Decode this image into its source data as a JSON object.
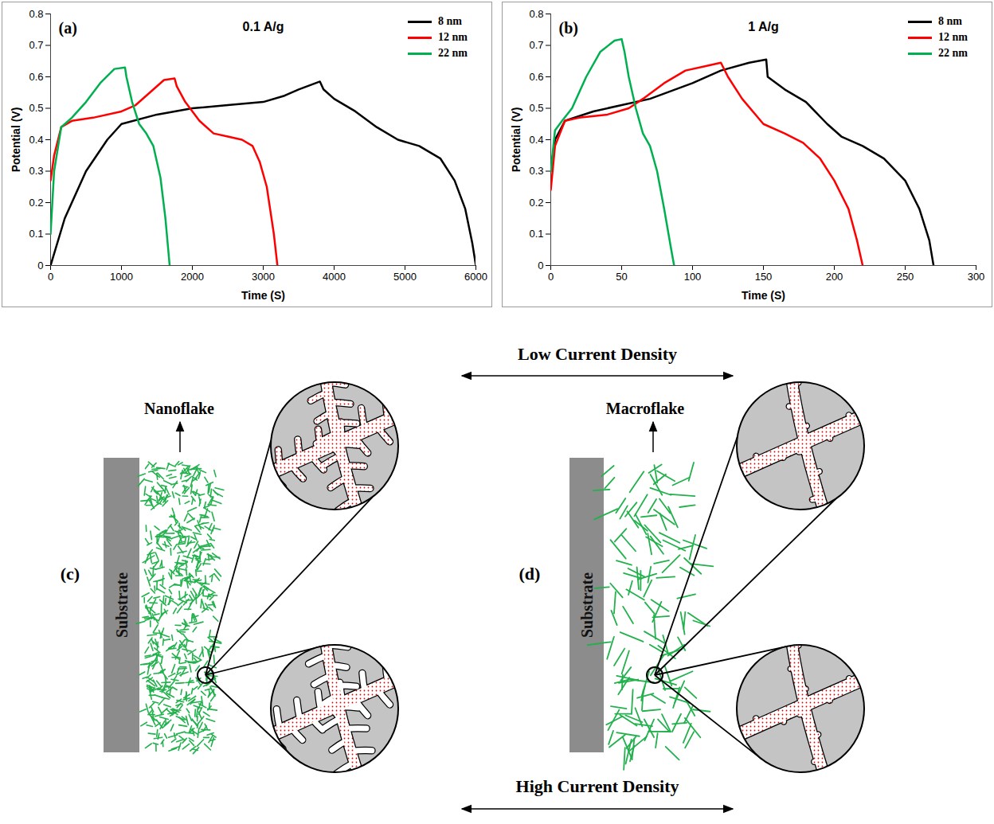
{
  "chart_data": [
    {
      "type": "line",
      "title": "0.1 A/g",
      "annotations": [
        "(a)"
      ],
      "x_label": "Time (S)",
      "y_label": "Potential (V)",
      "xlim": [
        0,
        6000
      ],
      "xticks": [
        0,
        1000,
        2000,
        3000,
        4000,
        5000,
        6000
      ],
      "ylim": [
        0,
        0.8
      ],
      "yticks": [
        0,
        0.1,
        0.2,
        0.3,
        0.4,
        0.5,
        0.6,
        0.7,
        0.8
      ],
      "legend": "top-right",
      "series": [
        {
          "name": "8 nm",
          "color": "#000000",
          "x": [
            0,
            200,
            500,
            800,
            1000,
            1500,
            2000,
            2500,
            3000,
            3300,
            3500,
            3800,
            3850,
            4000,
            4300,
            4600,
            4900,
            5200,
            5500,
            5700,
            5850,
            5950,
            6000
          ],
          "values": [
            0,
            0.15,
            0.3,
            0.4,
            0.45,
            0.48,
            0.5,
            0.51,
            0.52,
            0.54,
            0.56,
            0.585,
            0.56,
            0.53,
            0.49,
            0.44,
            0.4,
            0.38,
            0.34,
            0.27,
            0.18,
            0.07,
            0
          ]
        },
        {
          "name": "12 nm",
          "color": "#ff0000",
          "x": [
            0,
            50,
            150,
            300,
            600,
            1000,
            1200,
            1400,
            1600,
            1750,
            1780,
            1900,
            2100,
            2300,
            2500,
            2700,
            2850,
            2950,
            3050,
            3150,
            3200
          ],
          "values": [
            0.27,
            0.35,
            0.44,
            0.46,
            0.47,
            0.49,
            0.51,
            0.55,
            0.59,
            0.595,
            0.57,
            0.52,
            0.46,
            0.42,
            0.41,
            0.4,
            0.38,
            0.33,
            0.25,
            0.1,
            0
          ]
        },
        {
          "name": "22 nm",
          "color": "#00b050",
          "x": [
            0,
            50,
            150,
            300,
            500,
            700,
            900,
            1050,
            1070,
            1150,
            1250,
            1350,
            1450,
            1550,
            1620,
            1680
          ],
          "values": [
            0.1,
            0.3,
            0.44,
            0.47,
            0.52,
            0.58,
            0.625,
            0.63,
            0.6,
            0.52,
            0.45,
            0.42,
            0.38,
            0.28,
            0.15,
            0
          ]
        }
      ]
    },
    {
      "type": "line",
      "title": "1 A/g",
      "annotations": [
        "(b)"
      ],
      "x_label": "Time (S)",
      "y_label": "Potential (V)",
      "xlim": [
        0,
        300
      ],
      "xticks": [
        0,
        50,
        100,
        150,
        200,
        250,
        300
      ],
      "ylim": [
        0,
        0.8
      ],
      "yticks": [
        0,
        0.1,
        0.2,
        0.3,
        0.4,
        0.5,
        0.6,
        0.7,
        0.8
      ],
      "legend": "top-right",
      "series": [
        {
          "name": "8 nm",
          "color": "#000000",
          "x": [
            0,
            3,
            10,
            30,
            50,
            70,
            100,
            120,
            140,
            152,
            153,
            165,
            180,
            195,
            205,
            220,
            235,
            250,
            260,
            267,
            270
          ],
          "values": [
            0.3,
            0.4,
            0.46,
            0.49,
            0.51,
            0.53,
            0.58,
            0.62,
            0.645,
            0.655,
            0.6,
            0.56,
            0.52,
            0.45,
            0.41,
            0.38,
            0.34,
            0.27,
            0.18,
            0.08,
            0
          ]
        },
        {
          "name": "12 nm",
          "color": "#ff0000",
          "x": [
            0,
            3,
            10,
            20,
            40,
            55,
            65,
            80,
            95,
            110,
            120,
            125,
            135,
            150,
            165,
            178,
            190,
            200,
            210,
            216,
            220
          ],
          "values": [
            0.24,
            0.38,
            0.46,
            0.47,
            0.48,
            0.5,
            0.53,
            0.58,
            0.62,
            0.635,
            0.645,
            0.6,
            0.53,
            0.45,
            0.42,
            0.39,
            0.34,
            0.27,
            0.18,
            0.08,
            0
          ]
        },
        {
          "name": "22 nm",
          "color": "#00b050",
          "x": [
            0,
            3,
            8,
            15,
            25,
            35,
            45,
            50,
            52,
            55,
            60,
            65,
            70,
            75,
            80,
            85,
            87
          ],
          "values": [
            0.3,
            0.43,
            0.46,
            0.5,
            0.6,
            0.68,
            0.715,
            0.72,
            0.68,
            0.6,
            0.5,
            0.42,
            0.38,
            0.3,
            0.18,
            0.05,
            0
          ]
        }
      ]
    }
  ],
  "diagram": {
    "top_arrow": "Low Current Density",
    "bottom_arrow": "High Current Density",
    "panels": [
      {
        "label": "(c)",
        "layer": "Nanoflake",
        "substrate": "Substrate"
      },
      {
        "label": "(d)",
        "layer": "Macroflake",
        "substrate": "Substrate"
      }
    ]
  }
}
